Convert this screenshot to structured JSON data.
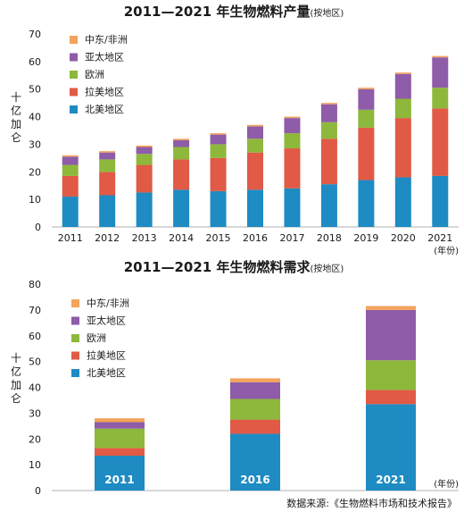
{
  "colors": {
    "north_america": "#1e8bc3",
    "latin_america": "#e05a45",
    "europe": "#8db83b",
    "asia_pacific": "#8e5ca8",
    "middle_east_africa": "#f3a35c"
  },
  "chart_data": [
    {
      "type": "bar",
      "stacked": true,
      "title": "2011—2021 年生物燃料产量",
      "subtitle": "(按地区)",
      "ylabel": "十亿加仑",
      "xunit": "(年份)",
      "ylim": [
        0,
        70
      ],
      "yticks": [
        0,
        10,
        20,
        30,
        40,
        50,
        60,
        70
      ],
      "categories": [
        "2011",
        "2012",
        "2013",
        "2014",
        "2015",
        "2016",
        "2017",
        "2018",
        "2019",
        "2020",
        "2021"
      ],
      "legend": [
        "中东/非洲",
        "亚太地区",
        "欧洲",
        "拉美地区",
        "北美地区"
      ],
      "legend_position": "top-left",
      "series": [
        {
          "name": "北美地区",
          "color_key": "north_america",
          "values": [
            11,
            11.5,
            12.5,
            13.5,
            13,
            13.5,
            14,
            15.5,
            17,
            18,
            18.5
          ]
        },
        {
          "name": "拉美地区",
          "color_key": "latin_america",
          "values": [
            7.5,
            8.5,
            10,
            11,
            12,
            13.5,
            14.5,
            16.5,
            19,
            21.5,
            24.5
          ]
        },
        {
          "name": "欧洲",
          "color_key": "europe",
          "values": [
            4,
            4.5,
            4,
            4.5,
            5,
            5,
            5.5,
            6,
            6.5,
            7,
            7.5
          ]
        },
        {
          "name": "亚太地区",
          "color_key": "asia_pacific",
          "values": [
            3,
            2.5,
            2.5,
            2.5,
            3.5,
            4.5,
            5.5,
            6.5,
            7.5,
            9,
            11
          ]
        },
        {
          "name": "中东/非洲",
          "color_key": "middle_east_africa",
          "values": [
            0.5,
            0.5,
            0.5,
            0.5,
            0.5,
            0.5,
            0.5,
            0.5,
            0.5,
            0.5,
            0.5
          ]
        }
      ]
    },
    {
      "type": "bar",
      "stacked": true,
      "title": "2011—2021 年生物燃料需求",
      "subtitle": "(按地区)",
      "ylabel": "十亿加仑",
      "xunit": "(年份)",
      "ylim": [
        0,
        80
      ],
      "yticks": [
        0,
        10,
        20,
        30,
        40,
        50,
        60,
        70,
        80
      ],
      "categories": [
        "2011",
        "2016",
        "2021"
      ],
      "legend": [
        "中东/非洲",
        "亚太地区",
        "欧洲",
        "拉美地区",
        "北美地区"
      ],
      "legend_position": "top-left",
      "series": [
        {
          "name": "北美地区",
          "color_key": "north_america",
          "values": [
            13.5,
            22,
            33.5
          ]
        },
        {
          "name": "拉美地区",
          "color_key": "latin_america",
          "values": [
            3,
            5.5,
            5.5
          ]
        },
        {
          "name": "欧洲",
          "color_key": "europe",
          "values": [
            7.5,
            8,
            11.5
          ]
        },
        {
          "name": "亚太地区",
          "color_key": "asia_pacific",
          "values": [
            2.5,
            6.5,
            19.5
          ]
        },
        {
          "name": "中东/非洲",
          "color_key": "middle_east_africa",
          "values": [
            1.5,
            1.5,
            1.5
          ]
        }
      ]
    }
  ],
  "source": "数据来源:《生物燃料市场和技术报告》"
}
